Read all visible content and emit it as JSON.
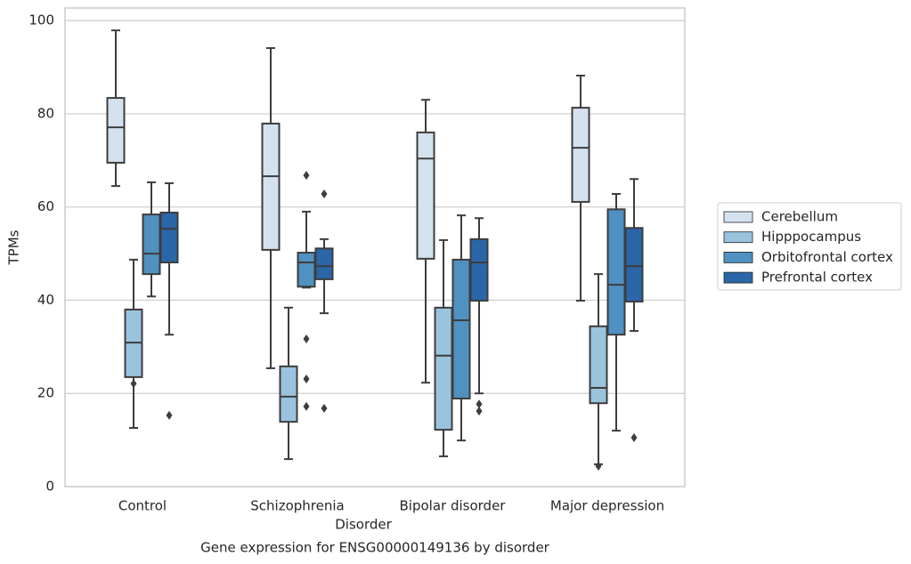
{
  "chart_data": {
    "type": "box",
    "title": "Gene expression for ENSG00000149136 by disorder",
    "xlabel": "Disorder",
    "ylabel": "TPMs",
    "categories": [
      "Control",
      "Schizophrenia",
      "Bipolar disorder",
      "Major depression"
    ],
    "ylim": [
      0,
      102.7
    ],
    "yticks": [
      0,
      20,
      40,
      60,
      80,
      100
    ],
    "grid": true,
    "legend": "right",
    "series": [
      {
        "name": "Cerebellum",
        "color": "#d4e2f0",
        "boxes": [
          {
            "min": 64.5,
            "q1": 69.5,
            "median": 77.1,
            "q3": 83.4,
            "max": 97.9,
            "outliers": []
          },
          {
            "min": 25.4,
            "q1": 50.8,
            "median": 66.6,
            "q3": 77.9,
            "max": 94.1,
            "outliers": []
          },
          {
            "min": 22.3,
            "q1": 48.9,
            "median": 70.4,
            "q3": 76.0,
            "max": 83.0,
            "outliers": []
          },
          {
            "min": 39.9,
            "q1": 61.1,
            "median": 72.7,
            "q3": 81.3,
            "max": 88.2,
            "outliers": []
          }
        ]
      },
      {
        "name": "Hipppocampus",
        "color": "#9ac3de",
        "boxes": [
          {
            "min": 12.6,
            "q1": 23.5,
            "median": 30.9,
            "q3": 38.0,
            "max": 48.7,
            "outliers": [
              22.1
            ]
          },
          {
            "min": 5.9,
            "q1": 13.9,
            "median": 19.3,
            "q3": 25.8,
            "max": 38.4,
            "outliers": []
          },
          {
            "min": 6.5,
            "q1": 12.2,
            "median": 28.1,
            "q3": 38.4,
            "max": 52.9,
            "outliers": []
          },
          {
            "min": 4.8,
            "q1": 17.9,
            "median": 21.2,
            "q3": 34.4,
            "max": 45.6,
            "outliers": [
              4.4
            ]
          }
        ]
      },
      {
        "name": "Orbitofrontal cortex",
        "color": "#4f91c0",
        "boxes": [
          {
            "min": 40.8,
            "q1": 45.6,
            "median": 50.0,
            "q3": 58.4,
            "max": 65.3,
            "outliers": []
          },
          {
            "min": 42.7,
            "q1": 42.9,
            "median": 48.1,
            "q3": 50.2,
            "max": 59.0,
            "outliers": [
              66.8,
              31.7,
              23.1,
              17.2
            ]
          },
          {
            "min": 9.9,
            "q1": 18.9,
            "median": 35.7,
            "q3": 48.7,
            "max": 58.2,
            "outliers": []
          },
          {
            "min": 12.0,
            "q1": 32.6,
            "median": 43.3,
            "q3": 59.5,
            "max": 62.8,
            "outliers": []
          }
        ]
      },
      {
        "name": "Prefrontal cortex",
        "color": "#2a66a8",
        "boxes": [
          {
            "min": 32.6,
            "q1": 48.1,
            "median": 55.3,
            "q3": 58.8,
            "max": 65.1,
            "outliers": [
              15.3
            ]
          },
          {
            "min": 37.2,
            "q1": 44.5,
            "median": 47.3,
            "q3": 51.1,
            "max": 53.1,
            "outliers": [
              62.8,
              16.8
            ]
          },
          {
            "min": 20.0,
            "q1": 39.9,
            "median": 48.1,
            "q3": 53.1,
            "max": 57.6,
            "outliers": [
              17.7,
              16.2
            ]
          },
          {
            "min": 33.4,
            "q1": 39.7,
            "median": 47.3,
            "q3": 55.5,
            "max": 66.0,
            "outliers": [
              10.5
            ]
          }
        ]
      }
    ]
  }
}
